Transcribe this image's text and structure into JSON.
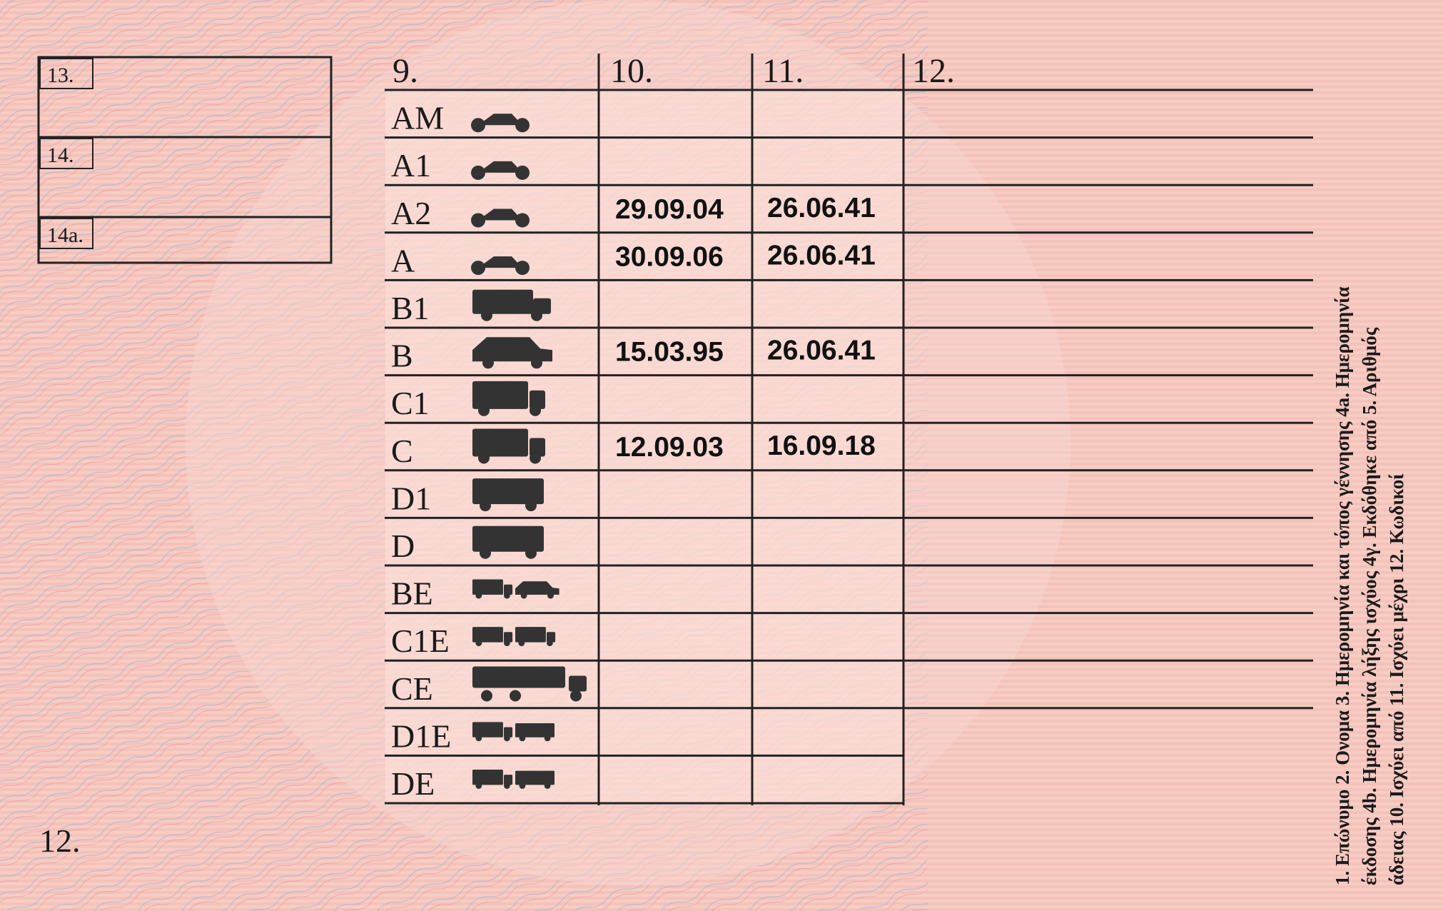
{
  "boxes": [
    "13.",
    "14.",
    "14a."
  ],
  "table": {
    "headers": [
      "9.",
      "10.",
      "11.",
      "12."
    ],
    "rows": [
      {
        "category": "AM"
      },
      {
        "category": "A1"
      },
      {
        "category": "A2",
        "issue": "29.09.04",
        "expiry": "26.06.41"
      },
      {
        "category": "A",
        "issue": "30.09.06",
        "expiry": "26.06.41"
      },
      {
        "category": "B1"
      },
      {
        "category": "B",
        "issue": "15.03.95",
        "expiry": "26.06.41"
      },
      {
        "category": "C1"
      },
      {
        "category": "C",
        "issue": "12.09.03",
        "expiry": "16.09.18"
      },
      {
        "category": "D1"
      },
      {
        "category": "D"
      },
      {
        "category": "BE"
      },
      {
        "category": "C1E"
      },
      {
        "category": "CE"
      },
      {
        "category": "D1E"
      },
      {
        "category": "DE"
      }
    ]
  },
  "footer_label": "12.",
  "legend_lines": [
    "1. Επώνυμο 2. Ονομα 3. Ημερομηνία και τόπος γέννησης 4a. Ημερομηνία",
    "έκδοσης 4b. Ημερομηνία λήξης ισχύος 4γ. Εκδόθηκε από 5. Αριθμός",
    "άδειας 10. Ισχύει από 11. Ισχύει μέχρι 12. Κωδικοί"
  ]
}
